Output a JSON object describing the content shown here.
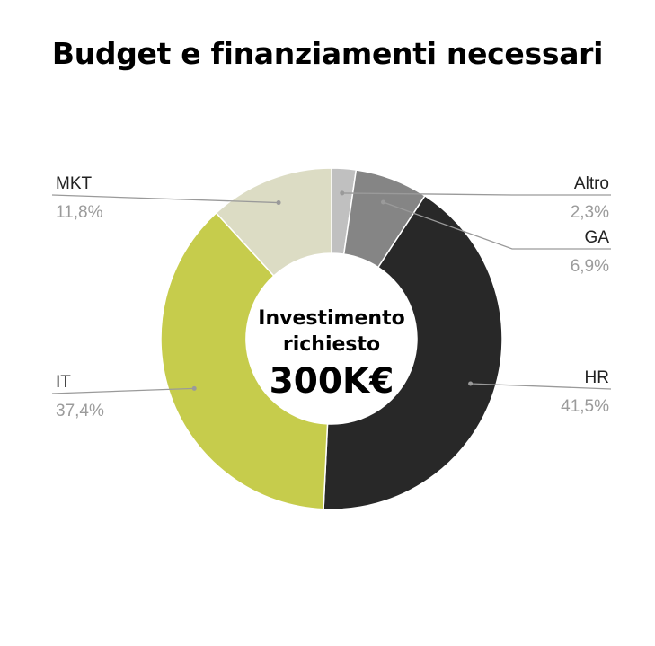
{
  "title": "Budget e finanziamenti necessari",
  "chart_data": {
    "type": "pie",
    "title": "Budget e finanziamenti necessari",
    "center_label": {
      "line1": "Investimento",
      "line2": "richiesto",
      "value": "300K€"
    },
    "slices": [
      {
        "name": "Altro",
        "value": 2.3,
        "label": "2,3%",
        "color": "#c0c0c0"
      },
      {
        "name": "GA",
        "value": 6.9,
        "label": "6,9%",
        "color": "#858585"
      },
      {
        "name": "HR",
        "value": 41.5,
        "label": "41,5%",
        "color": "#282828"
      },
      {
        "name": "IT",
        "value": 37.4,
        "label": "37,4%",
        "color": "#c6cc4c"
      },
      {
        "name": "MKT",
        "value": 11.8,
        "label": "11,8%",
        "color": "#dcdcc4"
      }
    ],
    "legend_position": "callouts"
  }
}
